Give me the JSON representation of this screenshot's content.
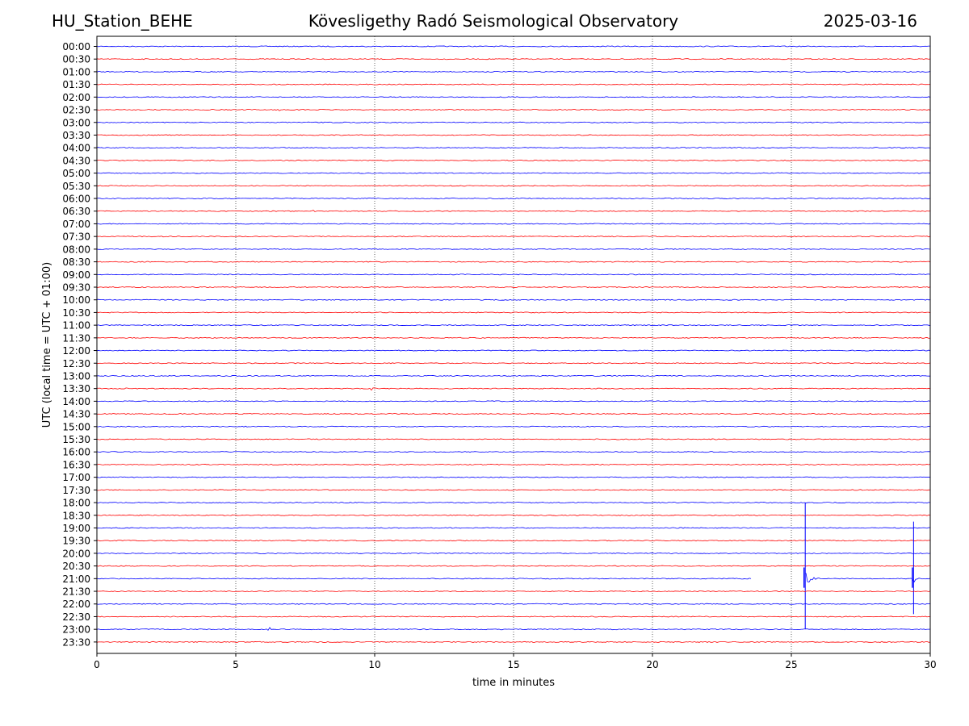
{
  "header": {
    "station": "HU_Station_BEHE",
    "observatory": "Kövesligethy Radó Seismological Observatory",
    "date": "2025-03-16"
  },
  "chart_data": {
    "type": "line",
    "title": "Kövesligethy Radó Seismological Observatory",
    "xlabel": "time in minutes",
    "ylabel": "UTC (local time = UTC + 01:00)",
    "xlim": [
      0,
      30
    ],
    "xticks": [
      0,
      5,
      10,
      15,
      20,
      25,
      30
    ],
    "grid": "vertical dotted lines at 5, 10, 15, 20, 25",
    "trace_colors": [
      "#0000ff",
      "#ff0000"
    ],
    "rows": [
      "00:00",
      "00:30",
      "01:00",
      "01:30",
      "02:00",
      "02:30",
      "03:00",
      "03:30",
      "04:00",
      "04:30",
      "05:00",
      "05:30",
      "06:00",
      "06:30",
      "07:00",
      "07:30",
      "08:00",
      "08:30",
      "09:00",
      "09:30",
      "10:00",
      "10:30",
      "11:00",
      "11:30",
      "12:00",
      "12:30",
      "13:00",
      "13:30",
      "14:00",
      "14:30",
      "15:00",
      "15:30",
      "16:00",
      "16:30",
      "17:00",
      "17:30",
      "18:00",
      "18:30",
      "19:00",
      "19:30",
      "20:00",
      "20:30",
      "21:00",
      "21:30",
      "22:00",
      "22:30",
      "23:00",
      "23:30"
    ],
    "gaps": [
      {
        "row": "21:00",
        "start_min": 23.6,
        "end_min": 25.5
      }
    ],
    "events": [
      {
        "row": "21:00",
        "minute": 25.5,
        "peak_up_rows": 6,
        "peak_down_rows": 4,
        "coda_until_min": 26.0
      },
      {
        "row": "21:00",
        "minute": 29.4,
        "peak_up_rows": 4.5,
        "peak_down_rows": 2.8,
        "coda_until_min": 29.6
      }
    ],
    "minor_blips": [
      {
        "row": "02:30",
        "minute": 6.6
      },
      {
        "row": "06:30",
        "minute": 7.8
      },
      {
        "row": "13:30",
        "minute": 1.1
      },
      {
        "row": "13:30",
        "minute": 9.9
      },
      {
        "row": "23:00",
        "minute": 6.2
      }
    ]
  }
}
